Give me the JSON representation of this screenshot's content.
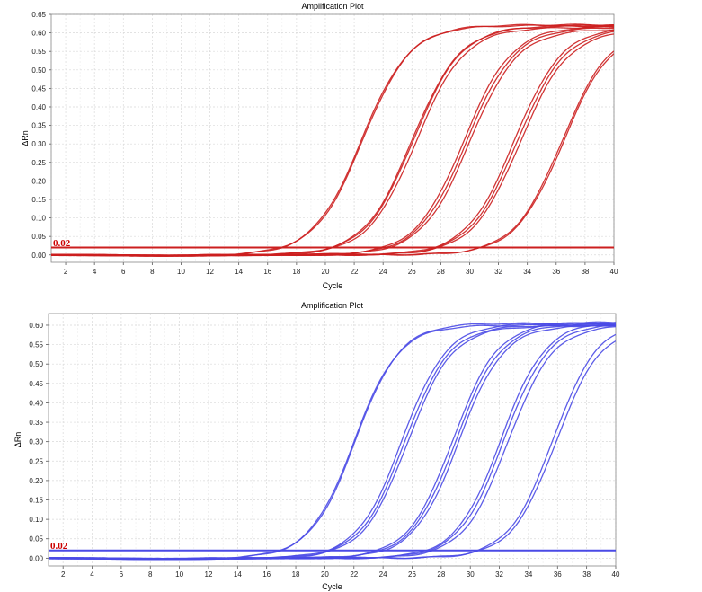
{
  "chart_data": [
    {
      "type": "line",
      "title": "Amplification Plot",
      "xlabel": "Cycle",
      "ylabel": "ΔRn",
      "xlim": [
        1,
        40
      ],
      "ylim": [
        -0.02,
        0.65
      ],
      "x_ticks": [
        "2",
        "4",
        "6",
        "8",
        "10",
        "12",
        "14",
        "16",
        "18",
        "20",
        "22",
        "24",
        "26",
        "28",
        "30",
        "32",
        "34",
        "36",
        "38",
        "40"
      ],
      "y_ticks": [
        "0.00",
        "0.05",
        "0.10",
        "0.15",
        "0.20",
        "0.25",
        "0.30",
        "0.35",
        "0.40",
        "0.45",
        "0.50",
        "0.55",
        "0.60",
        "0.65"
      ],
      "grid": true,
      "color": "#cc1f1f",
      "threshold": {
        "value": 0.02,
        "label": "0.02",
        "color": "#cc0000"
      },
      "curves": [
        {
          "ct": 17.5,
          "midpoint": 22.5,
          "slope": 0.6,
          "plateau": 0.62
        },
        {
          "ct": 17.6,
          "midpoint": 22.6,
          "slope": 0.6,
          "plateau": 0.622
        },
        {
          "ct": 21.0,
          "midpoint": 26.0,
          "slope": 0.6,
          "plateau": 0.618
        },
        {
          "ct": 21.1,
          "midpoint": 26.1,
          "slope": 0.6,
          "plateau": 0.62
        },
        {
          "ct": 21.3,
          "midpoint": 26.3,
          "slope": 0.6,
          "plateau": 0.615
        },
        {
          "ct": 24.6,
          "midpoint": 29.6,
          "slope": 0.6,
          "plateau": 0.618
        },
        {
          "ct": 24.8,
          "midpoint": 29.8,
          "slope": 0.6,
          "plateau": 0.615
        },
        {
          "ct": 25.0,
          "midpoint": 30.0,
          "slope": 0.6,
          "plateau": 0.61
        },
        {
          "ct": 28.1,
          "midpoint": 33.1,
          "slope": 0.6,
          "plateau": 0.617
        },
        {
          "ct": 28.3,
          "midpoint": 33.3,
          "slope": 0.6,
          "plateau": 0.613
        },
        {
          "ct": 28.5,
          "midpoint": 33.5,
          "slope": 0.6,
          "plateau": 0.608
        },
        {
          "ct": 31.4,
          "midpoint": 36.4,
          "slope": 0.6,
          "plateau": 0.615
        },
        {
          "ct": 31.5,
          "midpoint": 36.5,
          "slope": 0.6,
          "plateau": 0.612
        }
      ]
    },
    {
      "type": "line",
      "title": "Amplification Plot",
      "xlabel": "Cycle",
      "ylabel": "ΔRn",
      "xlim": [
        1,
        40
      ],
      "ylim": [
        -0.02,
        0.63
      ],
      "x_ticks": [
        "2",
        "4",
        "6",
        "8",
        "10",
        "12",
        "14",
        "16",
        "18",
        "20",
        "22",
        "24",
        "26",
        "28",
        "30",
        "32",
        "34",
        "36",
        "38",
        "40"
      ],
      "y_ticks": [
        "0.00",
        "0.05",
        "0.10",
        "0.15",
        "0.20",
        "0.25",
        "0.30",
        "0.35",
        "0.40",
        "0.45",
        "0.50",
        "0.55",
        "0.60"
      ],
      "grid": true,
      "color": "#4a4ae6",
      "threshold": {
        "value": 0.02,
        "label": "0.02",
        "color": "#cc0000"
      },
      "curves": [
        {
          "ct": 17.3,
          "midpoint": 22.0,
          "slope": 0.65,
          "plateau": 0.6
        },
        {
          "ct": 17.4,
          "midpoint": 22.1,
          "slope": 0.65,
          "plateau": 0.605
        },
        {
          "ct": 20.6,
          "midpoint": 25.3,
          "slope": 0.65,
          "plateau": 0.605
        },
        {
          "ct": 20.8,
          "midpoint": 25.5,
          "slope": 0.65,
          "plateau": 0.6
        },
        {
          "ct": 21.0,
          "midpoint": 25.7,
          "slope": 0.65,
          "plateau": 0.598
        },
        {
          "ct": 24.1,
          "midpoint": 28.8,
          "slope": 0.65,
          "plateau": 0.608
        },
        {
          "ct": 24.3,
          "midpoint": 29.0,
          "slope": 0.65,
          "plateau": 0.604
        },
        {
          "ct": 24.5,
          "midpoint": 29.2,
          "slope": 0.65,
          "plateau": 0.6
        },
        {
          "ct": 27.4,
          "midpoint": 32.1,
          "slope": 0.65,
          "plateau": 0.61
        },
        {
          "ct": 27.6,
          "midpoint": 32.3,
          "slope": 0.65,
          "plateau": 0.605
        },
        {
          "ct": 27.9,
          "midpoint": 32.6,
          "slope": 0.65,
          "plateau": 0.6
        },
        {
          "ct": 31.0,
          "midpoint": 35.7,
          "slope": 0.65,
          "plateau": 0.612
        },
        {
          "ct": 31.2,
          "midpoint": 35.9,
          "slope": 0.65,
          "plateau": 0.6
        }
      ]
    }
  ]
}
